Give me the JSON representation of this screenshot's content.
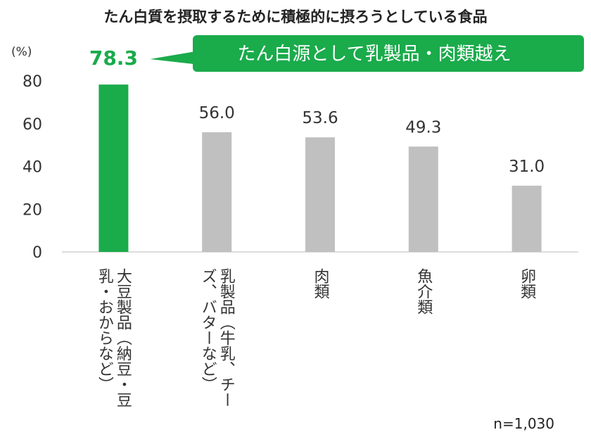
{
  "chart_data": {
    "type": "bar",
    "title": "たん白質を摂取するために積極的に摂ろうとしている食品",
    "ylabel": "(%)",
    "ylim": [
      0,
      80
    ],
    "yticks": [
      0,
      20,
      40,
      60,
      80
    ],
    "grid": false,
    "categories": [
      "大豆製品（納豆・豆乳・おからなど）",
      "乳製品（牛乳、チーズ、バターなど）",
      "肉類",
      "魚介類",
      "卵類"
    ],
    "category_columns": [
      [
        "大豆製品（納豆・豆",
        "乳・おからなど）"
      ],
      [
        "乳製品（牛乳、チー",
        "ズ、バターなど）"
      ],
      [
        "肉類"
      ],
      [
        "魚介類"
      ],
      [
        "卵類"
      ]
    ],
    "values": [
      78.3,
      56.0,
      53.6,
      49.3,
      31.0
    ],
    "value_labels": [
      "78.3",
      "56.0",
      "53.6",
      "49.3",
      "31.0"
    ],
    "highlight_index": 0,
    "callout": "たん白源として乳製品・肉類越え",
    "note": "n=1,030",
    "colors": {
      "highlight": "#1aab4b",
      "bar": "#c0c0c0",
      "callout_bg": "#1aab4b",
      "callout_text": "#ffffff",
      "text": "#333333",
      "axis": "#d0d0d0"
    }
  }
}
